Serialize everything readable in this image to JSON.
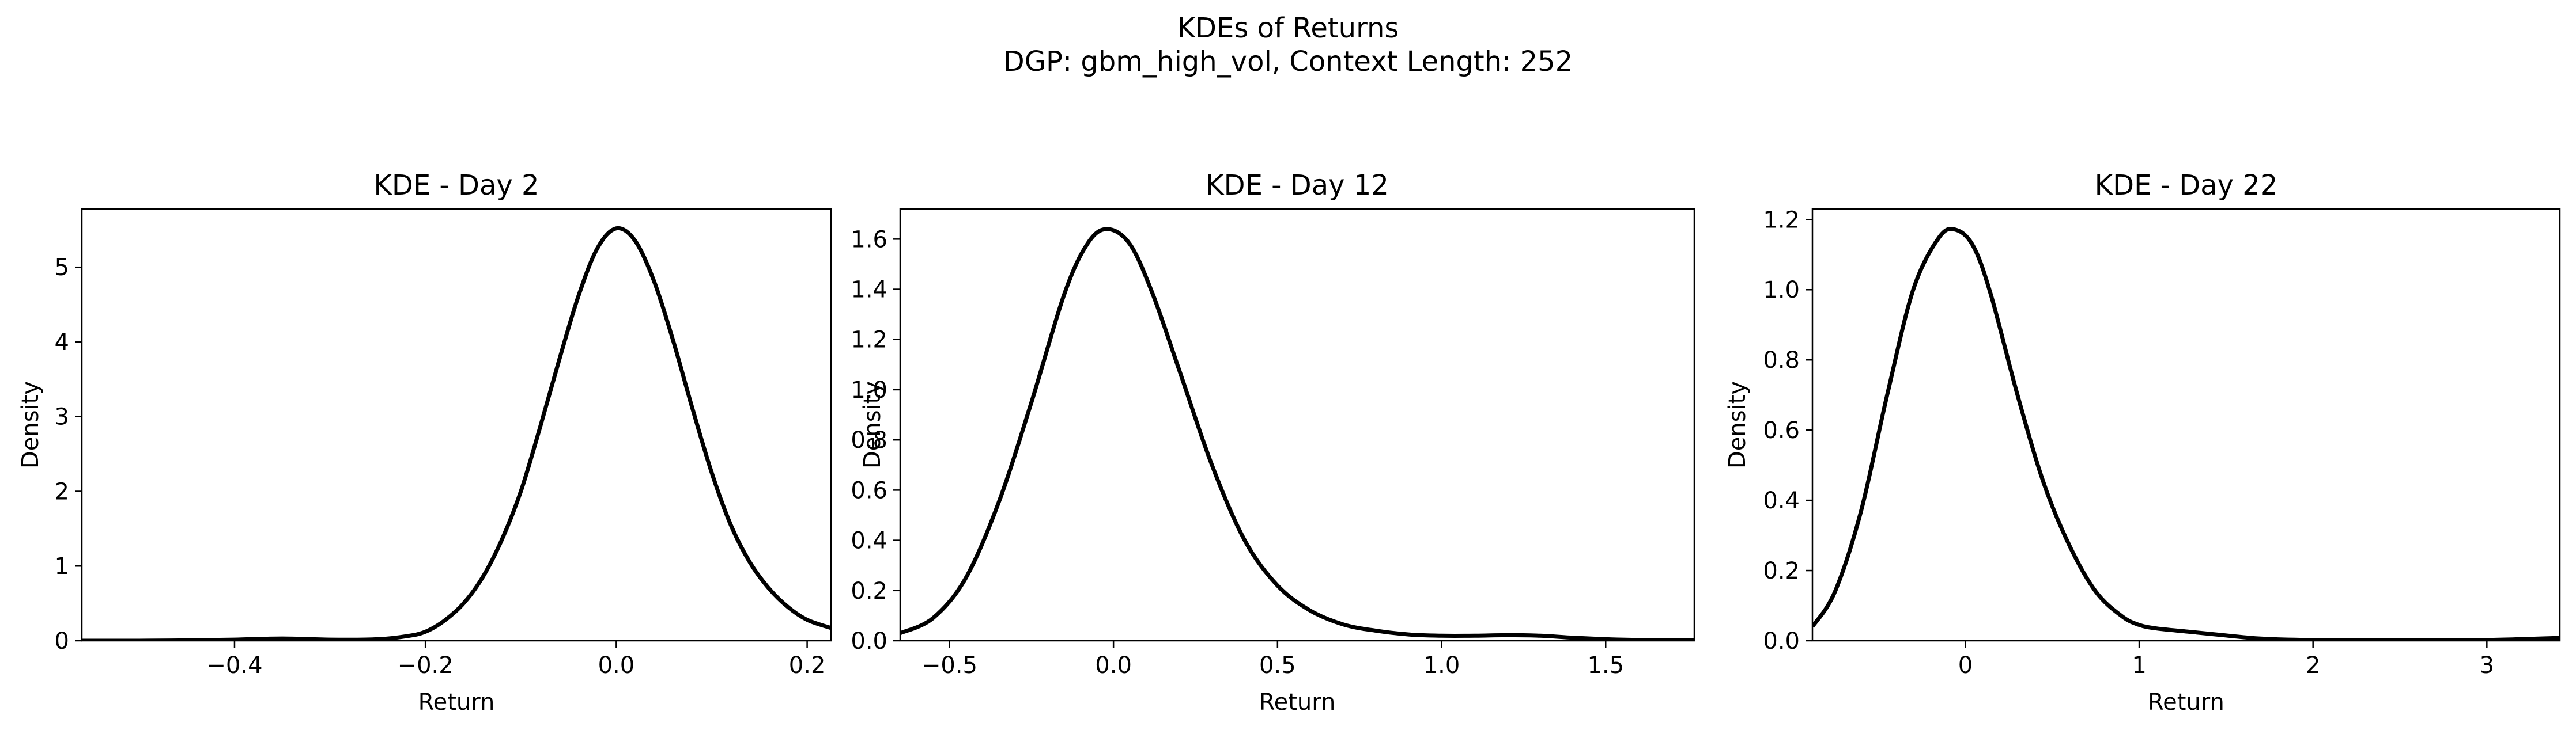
{
  "figure": {
    "title_line1": "KDEs of Returns",
    "title_line2": "DGP: gbm_high_vol, Context Length: 252"
  },
  "chart_data": [
    {
      "type": "line",
      "title": "KDE - Day 2",
      "xlabel": "Return",
      "ylabel": "Density",
      "xlim": [
        -0.56,
        0.225
      ],
      "ylim": [
        0,
        5.78
      ],
      "xticks": [
        -0.4,
        -0.2,
        0.0,
        0.2
      ],
      "xtick_labels": [
        "−0.4",
        "−0.2",
        "0.0",
        "0.2"
      ],
      "yticks": [
        0,
        1,
        2,
        3,
        4,
        5
      ],
      "ytick_labels": [
        "0",
        "1",
        "2",
        "3",
        "4",
        "5"
      ],
      "grid": false,
      "series": [
        {
          "color": "#000000",
          "x": [
            -0.56,
            -0.5,
            -0.45,
            -0.4,
            -0.35,
            -0.3,
            -0.25,
            -0.22,
            -0.2,
            -0.18,
            -0.16,
            -0.14,
            -0.12,
            -0.1,
            -0.08,
            -0.06,
            -0.04,
            -0.02,
            0.0,
            0.02,
            0.04,
            0.06,
            0.08,
            0.1,
            0.12,
            0.14,
            0.16,
            0.18,
            0.2,
            0.225
          ],
          "y": [
            0.0,
            0.0,
            0.005,
            0.015,
            0.03,
            0.015,
            0.02,
            0.06,
            0.12,
            0.27,
            0.5,
            0.85,
            1.35,
            2.0,
            2.85,
            3.75,
            4.6,
            5.25,
            5.52,
            5.35,
            4.8,
            4.0,
            3.1,
            2.25,
            1.55,
            1.05,
            0.7,
            0.45,
            0.28,
            0.17
          ]
        }
      ]
    },
    {
      "type": "line",
      "title": "KDE - Day 12",
      "xlabel": "Return",
      "ylabel": "Density",
      "xlim": [
        -0.65,
        1.77
      ],
      "ylim": [
        0,
        1.72
      ],
      "xticks": [
        -0.5,
        0.0,
        0.5,
        1.0,
        1.5
      ],
      "xtick_labels": [
        "−0.5",
        "0.0",
        "0.5",
        "1.0",
        "1.5"
      ],
      "yticks": [
        0.0,
        0.2,
        0.4,
        0.6,
        0.8,
        1.0,
        1.2,
        1.4,
        1.6
      ],
      "ytick_labels": [
        "0.0",
        "0.2",
        "0.4",
        "0.6",
        "0.8",
        "1.0",
        "1.2",
        "1.4",
        "1.6"
      ],
      "grid": false,
      "series": [
        {
          "color": "#000000",
          "x": [
            -0.65,
            -0.55,
            -0.45,
            -0.35,
            -0.25,
            -0.15,
            -0.08,
            -0.02,
            0.05,
            0.12,
            0.2,
            0.3,
            0.4,
            0.5,
            0.6,
            0.7,
            0.8,
            0.9,
            1.0,
            1.1,
            1.2,
            1.3,
            1.4,
            1.5,
            1.6,
            1.77
          ],
          "y": [
            0.03,
            0.09,
            0.25,
            0.55,
            0.95,
            1.38,
            1.58,
            1.64,
            1.58,
            1.38,
            1.08,
            0.7,
            0.4,
            0.22,
            0.12,
            0.065,
            0.04,
            0.025,
            0.02,
            0.02,
            0.022,
            0.02,
            0.012,
            0.006,
            0.003,
            0.002
          ]
        }
      ]
    },
    {
      "type": "line",
      "title": "KDE - Day 22",
      "xlabel": "Return",
      "ylabel": "Density",
      "xlim": [
        -0.88,
        3.42
      ],
      "ylim": [
        0,
        1.23
      ],
      "xticks": [
        0,
        1,
        2,
        3
      ],
      "xtick_labels": [
        "0",
        "1",
        "2",
        "3"
      ],
      "yticks": [
        0.0,
        0.2,
        0.4,
        0.6,
        0.8,
        1.0,
        1.2
      ],
      "ytick_labels": [
        "0.0",
        "0.2",
        "0.4",
        "0.6",
        "0.8",
        "1.0",
        "1.2"
      ],
      "grid": false,
      "series": [
        {
          "color": "#000000",
          "x": [
            -0.88,
            -0.75,
            -0.6,
            -0.45,
            -0.3,
            -0.15,
            -0.05,
            0.05,
            0.15,
            0.3,
            0.45,
            0.6,
            0.75,
            0.9,
            1.0,
            1.1,
            1.3,
            1.5,
            1.7,
            2.0,
            2.5,
            3.0,
            3.42
          ],
          "y": [
            0.04,
            0.14,
            0.37,
            0.7,
            1.0,
            1.15,
            1.17,
            1.12,
            0.98,
            0.7,
            0.45,
            0.27,
            0.14,
            0.07,
            0.045,
            0.035,
            0.025,
            0.015,
            0.006,
            0.002,
            0.001,
            0.002,
            0.008
          ]
        }
      ]
    }
  ]
}
